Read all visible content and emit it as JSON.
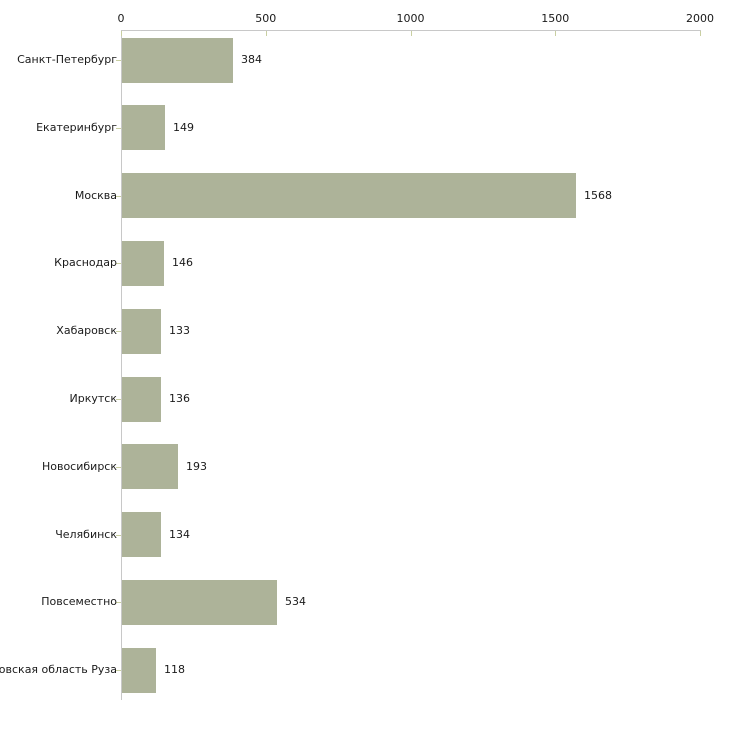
{
  "chart_data": {
    "type": "bar",
    "orientation": "horizontal",
    "title": "",
    "xlabel": "",
    "ylabel": "",
    "categories": [
      "Санкт-Петербург",
      "Екатеринбург",
      "Москва",
      "Краснодар",
      "Хабаровск",
      "Иркутск",
      "Новосибирск",
      "Челябинск",
      "Повсеместно",
      "Московская область Руза"
    ],
    "values": [
      384,
      149,
      1568,
      146,
      133,
      136,
      193,
      134,
      534,
      118
    ],
    "value_labels": [
      "384",
      "149",
      "1568",
      "146",
      "133",
      "136",
      "193",
      "134",
      "534",
      "118"
    ],
    "xlim": [
      0,
      2000
    ],
    "x_ticks": [
      0,
      500,
      1000,
      1500,
      2000
    ],
    "x_tick_labels": [
      "0",
      "500",
      "1000",
      "1500",
      "2000"
    ],
    "axis_position": "top",
    "grid": false,
    "legend": "none",
    "colors": {
      "bar": "#adb399",
      "axis": "#c8c8c8",
      "tick": "#c9cfa2",
      "text": "#1a1a1a",
      "background": "#ffffff"
    }
  }
}
